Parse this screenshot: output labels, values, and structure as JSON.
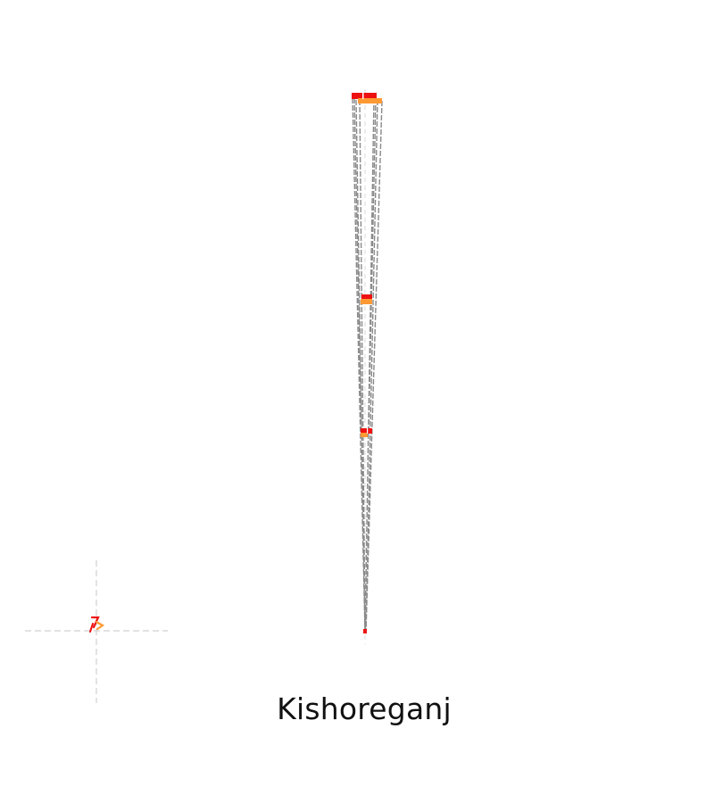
{
  "figure": {
    "place_name": "Kishoreganj"
  },
  "colors": {
    "background": "#ffffff",
    "primary_marker": "#ee1111",
    "secondary_marker": "#ff9933",
    "connector_line": "#8a8a8a",
    "guide_line": "#d0d0d0",
    "label_text": "#111111"
  }
}
